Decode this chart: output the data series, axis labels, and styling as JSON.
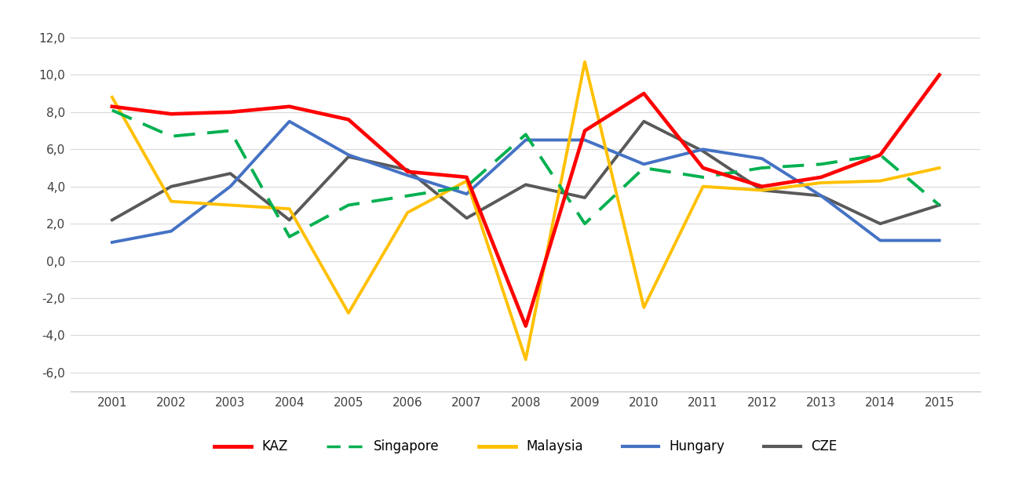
{
  "years": [
    2001,
    2002,
    2003,
    2004,
    2005,
    2006,
    2007,
    2008,
    2009,
    2010,
    2011,
    2012,
    2013,
    2014,
    2015
  ],
  "KAZ": [
    8.3,
    7.9,
    8.0,
    8.3,
    7.6,
    4.8,
    4.5,
    -3.5,
    7.0,
    9.0,
    5.0,
    4.0,
    4.5,
    5.7,
    10.0
  ],
  "Singapore": [
    8.1,
    6.7,
    7.0,
    1.3,
    3.0,
    3.5,
    4.0,
    6.8,
    2.0,
    5.0,
    4.5,
    5.0,
    5.2,
    5.7,
    3.0
  ],
  "Malaysia": [
    8.8,
    3.2,
    3.0,
    2.8,
    -2.8,
    2.6,
    4.3,
    -5.3,
    10.7,
    -2.5,
    4.0,
    3.8,
    4.2,
    4.3,
    5.0
  ],
  "Hungary": [
    1.0,
    1.6,
    4.0,
    7.5,
    5.7,
    4.6,
    3.6,
    6.5,
    6.5,
    5.2,
    6.0,
    5.5,
    3.5,
    1.1,
    1.1
  ],
  "CZE": [
    2.2,
    4.0,
    4.7,
    2.2,
    5.6,
    4.9,
    2.3,
    4.1,
    3.4,
    7.5,
    5.9,
    3.8,
    3.5,
    2.0,
    3.0
  ],
  "colors": {
    "KAZ": "#FF0000",
    "Singapore": "#00B050",
    "Malaysia": "#FFC000",
    "Hungary": "#4472C4",
    "CZE": "#595959"
  },
  "ylim": [
    -7.0,
    13.0
  ],
  "yticks": [
    -6,
    -4,
    -2,
    0,
    2,
    4,
    6,
    8,
    10,
    12
  ],
  "ytick_labels": [
    "-6,0",
    "-4,0",
    "-2,0",
    "0,0",
    "2,0",
    "4,0",
    "6,0",
    "8,0",
    "10,0",
    "12,0"
  ],
  "background_color": "#FFFFFF",
  "grid_color": "#D9D9D9",
  "line_width": 2.8
}
